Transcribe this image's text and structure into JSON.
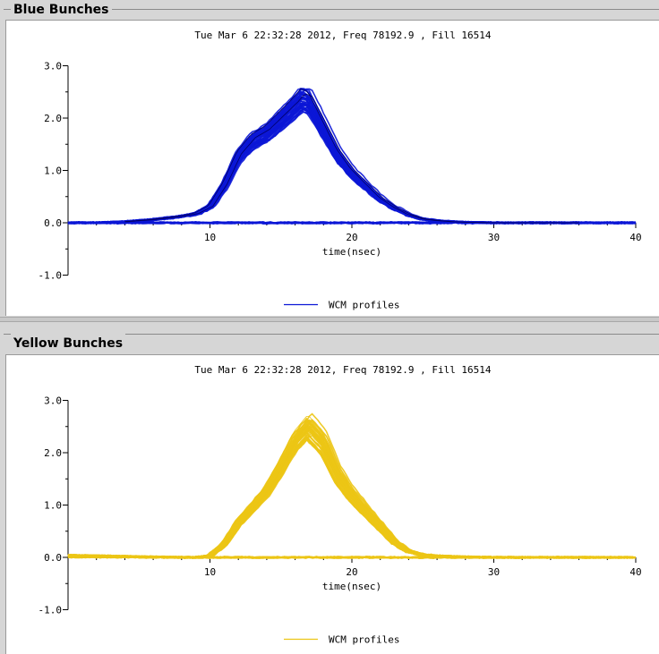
{
  "panels": [
    {
      "title": "Blue Bunches",
      "subtitle": "Tue Mar  6 22:32:28 2012, Freq 78192.9 , Fill 16514",
      "color": "#0b16d6",
      "legend": "WCM profiles"
    },
    {
      "title": "Yellow Bunches",
      "subtitle": "Tue Mar  6 22:32:28 2012, Freq 78192.9 , Fill 16514",
      "color": "#ecc515",
      "legend": "WCM profiles"
    }
  ],
  "chart_data": [
    {
      "type": "line",
      "title": "Tue Mar  6 22:32:28 2012, Freq 78192.9 , Fill 16514",
      "xlabel": "time(nsec)",
      "ylabel": "",
      "xlim": [
        0,
        40
      ],
      "ylim": [
        -1.0,
        3.0
      ],
      "xticks": [
        10,
        20,
        30,
        40
      ],
      "yticks": [
        3.0,
        2.0,
        1.0,
        0.0,
        -1.0
      ],
      "ytick_labels": [
        "3.0",
        "2.0",
        "1.0",
        "0.0",
        "-1.0"
      ],
      "legend": "bottom-center",
      "series": [
        {
          "name": "WCM profiles",
          "color": "#0b16d6",
          "x": [
            0,
            2,
            4,
            6,
            8,
            9,
            10,
            11,
            12,
            13,
            14,
            15,
            16,
            16.5,
            17,
            18,
            19,
            20,
            21,
            22,
            23,
            24,
            25,
            26,
            27,
            28,
            30,
            35,
            40
          ],
          "y": [
            0.0,
            0.0,
            0.02,
            0.06,
            0.12,
            0.17,
            0.3,
            0.7,
            1.25,
            1.55,
            1.7,
            1.95,
            2.2,
            2.35,
            2.3,
            1.8,
            1.3,
            0.95,
            0.7,
            0.45,
            0.28,
            0.15,
            0.07,
            0.04,
            0.02,
            0.01,
            0.0,
            0.0,
            0.0
          ]
        }
      ]
    },
    {
      "type": "line",
      "title": "Tue Mar  6 22:32:28 2012, Freq 78192.9 , Fill 16514",
      "xlabel": "time(nsec)",
      "ylabel": "",
      "xlim": [
        0,
        40
      ],
      "ylim": [
        -1.0,
        3.0
      ],
      "xticks": [
        10,
        20,
        30,
        40
      ],
      "yticks": [
        3.0,
        2.0,
        1.0,
        0.0,
        -1.0
      ],
      "ytick_labels": [
        "3.0",
        "2.0",
        "1.0",
        "0.0",
        "-1.0"
      ],
      "legend": "bottom-center",
      "series": [
        {
          "name": "WCM profiles",
          "color": "#ecc515",
          "x": [
            0,
            2,
            4,
            6,
            8,
            9,
            10,
            11,
            12,
            13,
            14,
            15,
            16,
            17,
            18,
            19,
            20,
            21,
            22,
            23,
            24,
            25,
            26,
            27,
            28,
            30,
            35,
            40
          ],
          "y": [
            0.04,
            0.03,
            0.02,
            0.01,
            0.0,
            0.0,
            0.03,
            0.25,
            0.65,
            0.95,
            1.25,
            1.7,
            2.2,
            2.5,
            2.2,
            1.6,
            1.2,
            0.9,
            0.6,
            0.3,
            0.12,
            0.05,
            0.03,
            0.02,
            0.01,
            0.0,
            0.0,
            0.0
          ]
        }
      ]
    }
  ]
}
